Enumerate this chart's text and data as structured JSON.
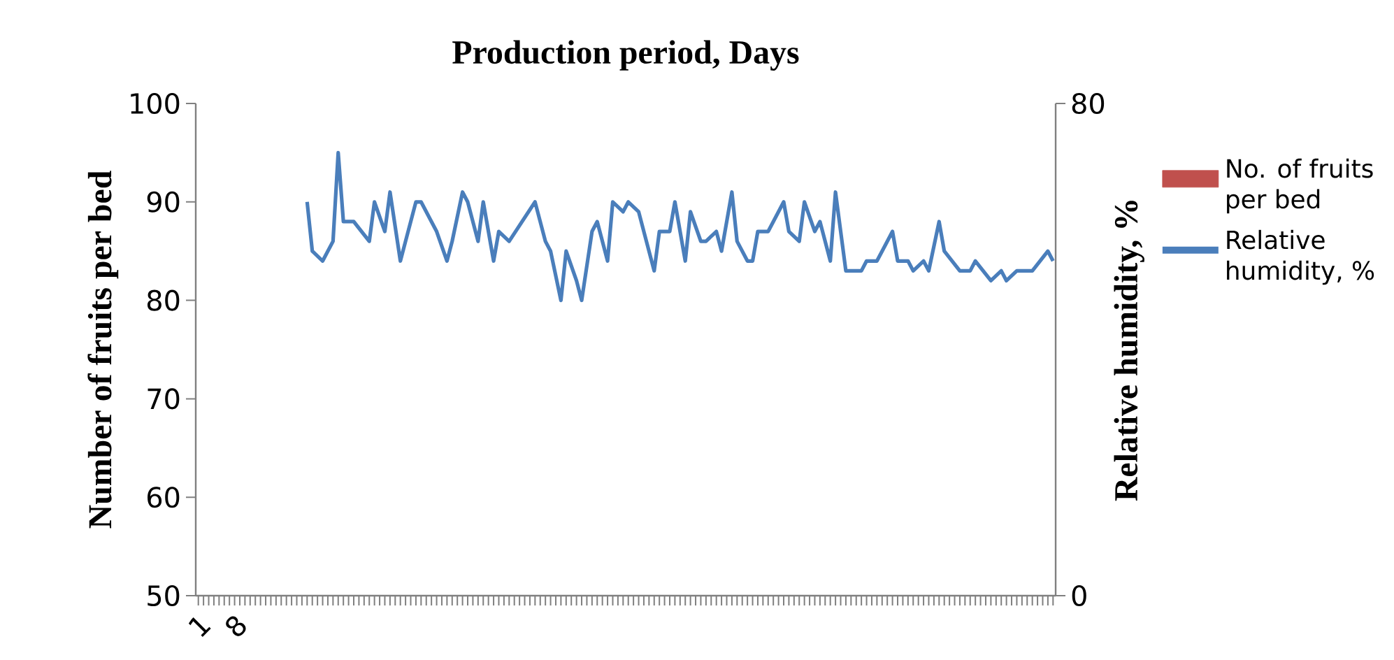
{
  "chart_data": {
    "type": "line",
    "title": "Production period, Days",
    "ylabel": "Number of  fruits per bed",
    "y2label": "Relative humidity, %",
    "ylim": [
      50,
      100
    ],
    "yticks": [
      50,
      60,
      70,
      80,
      90,
      100
    ],
    "y2lim": [
      0,
      80
    ],
    "y2ticks": [
      0,
      80
    ],
    "xlim": [
      0.5,
      166.5
    ],
    "xticks": [
      1,
      {
        "value": 2,
        "label": null
      },
      {
        "value": 3,
        "label": null
      },
      {
        "value": 4,
        "label": null
      },
      {
        "value": 5,
        "label": null
      },
      {
        "value": 6,
        "label": null
      },
      {
        "value": 7,
        "label": null
      },
      8,
      {
        "value": 9,
        "label": null
      },
      {
        "value": 10,
        "label": null
      },
      {
        "value": 11,
        "label": null
      },
      {
        "value": 12,
        "label": null
      },
      {
        "value": 13,
        "label": null
      },
      {
        "value": 14,
        "label": null
      },
      {
        "value": 15,
        "label": null
      },
      {
        "value": 16,
        "label": null
      },
      {
        "value": 17,
        "label": null
      },
      {
        "value": 18,
        "label": null
      },
      {
        "value": 19,
        "label": null
      },
      {
        "value": 20,
        "label": null
      },
      {
        "value": 21,
        "label": null
      },
      {
        "value": 22,
        "label": null
      },
      {
        "value": 23,
        "label": null
      },
      {
        "value": 24,
        "label": null
      },
      {
        "value": 25,
        "label": null
      },
      {
        "value": 26,
        "label": null
      },
      {
        "value": 27,
        "label": null
      },
      {
        "value": 28,
        "label": null
      },
      {
        "value": 29,
        "label": null
      },
      {
        "value": 30,
        "label": null
      },
      {
        "value": 31,
        "label": null
      },
      {
        "value": 32,
        "label": null
      },
      {
        "value": 33,
        "label": null
      },
      {
        "value": 34,
        "label": null
      },
      {
        "value": 35,
        "label": null
      },
      {
        "value": 36,
        "label": null
      },
      {
        "value": 37,
        "label": null
      },
      {
        "value": 38,
        "label": null
      },
      {
        "value": 39,
        "label": null
      },
      {
        "value": 40,
        "label": null
      },
      {
        "value": 41,
        "label": null
      },
      {
        "value": 42,
        "label": null
      },
      {
        "value": 43,
        "label": null
      },
      {
        "value": 44,
        "label": null
      },
      {
        "value": 45,
        "label": null
      },
      {
        "value": 46,
        "label": null
      },
      {
        "value": 47,
        "label": null
      },
      {
        "value": 48,
        "label": null
      },
      {
        "value": 49,
        "label": null
      },
      {
        "value": 50,
        "label": null
      },
      {
        "value": 51,
        "label": null
      },
      {
        "value": 52,
        "label": null
      },
      {
        "value": 53,
        "label": null
      },
      {
        "value": 54,
        "label": null
      },
      {
        "value": 55,
        "label": null
      },
      {
        "value": 56,
        "label": null
      },
      {
        "value": 57,
        "label": null
      },
      {
        "value": 58,
        "label": null
      },
      {
        "value": 59,
        "label": null
      },
      {
        "value": 60,
        "label": null
      },
      {
        "value": 61,
        "label": null
      },
      {
        "value": 62,
        "label": null
      },
      {
        "value": 63,
        "label": null
      },
      {
        "value": 64,
        "label": null
      },
      {
        "value": 65,
        "label": null
      },
      {
        "value": 66,
        "label": null
      },
      {
        "value": 67,
        "label": null
      },
      {
        "value": 68,
        "label": null
      },
      {
        "value": 69,
        "label": null
      },
      {
        "value": 70,
        "label": null
      },
      {
        "value": 71,
        "label": null
      },
      {
        "value": 72,
        "label": null
      },
      {
        "value": 73,
        "label": null
      },
      {
        "value": 74,
        "label": null
      },
      {
        "value": 75,
        "label": null
      },
      {
        "value": 76,
        "label": null
      },
      {
        "value": 77,
        "label": null
      },
      {
        "value": 78,
        "label": null
      },
      {
        "value": 79,
        "label": null
      },
      {
        "value": 80,
        "label": null
      },
      {
        "value": 81,
        "label": null
      },
      {
        "value": 82,
        "label": null
      },
      {
        "value": 83,
        "label": null
      },
      {
        "value": 84,
        "label": null
      },
      {
        "value": 85,
        "label": null
      },
      {
        "value": 86,
        "label": null
      },
      {
        "value": 87,
        "label": null
      },
      {
        "value": 88,
        "label": null
      },
      {
        "value": 89,
        "label": null
      },
      {
        "value": 90,
        "label": null
      },
      {
        "value": 91,
        "label": null
      },
      {
        "value": 92,
        "label": null
      },
      {
        "value": 93,
        "label": null
      },
      {
        "value": 94,
        "label": null
      },
      {
        "value": 95,
        "label": null
      },
      {
        "value": 96,
        "label": null
      },
      {
        "value": 97,
        "label": null
      },
      {
        "value": 98,
        "label": null
      },
      {
        "value": 99,
        "label": null
      },
      {
        "value": 100,
        "label": null
      },
      {
        "value": 101,
        "label": null
      },
      {
        "value": 102,
        "label": null
      },
      {
        "value": 103,
        "label": null
      },
      {
        "value": 104,
        "label": null
      },
      {
        "value": 105,
        "label": null
      },
      {
        "value": 106,
        "label": null
      },
      {
        "value": 107,
        "label": null
      },
      {
        "value": 108,
        "label": null
      },
      {
        "value": 109,
        "label": null
      },
      {
        "value": 110,
        "label": null
      },
      {
        "value": 111,
        "label": null
      },
      {
        "value": 112,
        "label": null
      },
      {
        "value": 113,
        "label": null
      },
      {
        "value": 114,
        "label": null
      },
      {
        "value": 115,
        "label": null
      },
      {
        "value": 116,
        "label": null
      },
      {
        "value": 117,
        "label": null
      },
      {
        "value": 118,
        "label": null
      },
      {
        "value": 119,
        "label": null
      },
      {
        "value": 120,
        "label": null
      },
      {
        "value": 121,
        "label": null
      },
      {
        "value": 122,
        "label": null
      },
      {
        "value": 123,
        "label": null
      },
      {
        "value": 124,
        "label": null
      },
      {
        "value": 125,
        "label": null
      },
      {
        "value": 126,
        "label": null
      },
      {
        "value": 127,
        "label": null
      },
      {
        "value": 128,
        "label": null
      },
      {
        "value": 129,
        "label": null
      },
      {
        "value": 130,
        "label": null
      },
      {
        "value": 131,
        "label": null
      },
      {
        "value": 132,
        "label": null
      },
      {
        "value": 133,
        "label": null
      },
      {
        "value": 134,
        "label": null
      },
      {
        "value": 135,
        "label": null
      },
      {
        "value": 136,
        "label": null
      },
      {
        "value": 137,
        "label": null
      },
      {
        "value": 138,
        "label": null
      },
      {
        "value": 139,
        "label": null
      },
      {
        "value": 140,
        "label": null
      },
      {
        "value": 141,
        "label": null
      },
      {
        "value": 142,
        "label": null
      },
      {
        "value": 143,
        "label": null
      },
      {
        "value": 144,
        "label": null
      },
      {
        "value": 145,
        "label": null
      },
      {
        "value": 146,
        "label": null
      },
      {
        "value": 147,
        "label": null
      },
      {
        "value": 148,
        "label": null
      },
      {
        "value": 149,
        "label": null
      },
      {
        "value": 150,
        "label": null
      },
      {
        "value": 151,
        "label": null
      },
      {
        "value": 152,
        "label": null
      },
      {
        "value": 153,
        "label": null
      },
      {
        "value": 154,
        "label": null
      },
      {
        "value": 155,
        "label": null
      },
      {
        "value": 156,
        "label": null
      },
      {
        "value": 157,
        "label": null
      },
      {
        "value": 158,
        "label": null
      },
      {
        "value": 159,
        "label": null
      },
      {
        "value": 160,
        "label": null
      },
      {
        "value": 161,
        "label": null
      },
      {
        "value": 162,
        "label": null
      },
      {
        "value": 163,
        "label": null
      },
      {
        "value": 164,
        "label": null
      },
      {
        "value": 165,
        "label": null
      },
      {
        "value": 166,
        "label": null
      }
    ],
    "legend": "right",
    "marker": "none",
    "line_style": "solid",
    "series": [
      {
        "name": "No. of fruits per bed",
        "type": "bar",
        "color": "#c0504d"
      },
      {
        "name": "Relative humidity, %",
        "type": "line",
        "color": "#4a7ebb",
        "x": [
          22,
          23,
          25,
          27,
          28,
          29,
          31,
          34,
          35,
          37,
          38,
          40,
          41,
          43,
          44,
          46,
          47,
          49,
          50,
          52,
          53,
          55,
          56,
          58,
          59,
          61,
          66,
          68,
          69,
          71,
          72,
          74,
          75,
          77,
          78,
          80,
          81,
          83,
          84,
          86,
          87,
          89,
          90,
          92,
          93,
          95,
          96,
          98,
          99,
          101,
          102,
          104,
          105,
          107,
          108,
          109,
          111,
          112,
          114,
          115,
          117,
          118,
          120,
          121,
          123,
          124,
          126,
          129,
          130,
          132,
          133,
          135,
          136,
          138,
          139,
          141,
          142,
          144,
          145,
          148,
          150,
          151,
          154,
          156,
          157,
          159,
          162,
          165,
          166
        ],
        "values": [
          90,
          85,
          84,
          86,
          95,
          88,
          88,
          86,
          90,
          87,
          91,
          84,
          86,
          90,
          90,
          88,
          87,
          84,
          86,
          91,
          90,
          86,
          90,
          84,
          87,
          86,
          90,
          86,
          85,
          80,
          85,
          82,
          80,
          87,
          88,
          84,
          90,
          89,
          90,
          89,
          87,
          83,
          87,
          87,
          90,
          84,
          89,
          86,
          86,
          87,
          85,
          91,
          86,
          84,
          84,
          87,
          87,
          88,
          90,
          87,
          86,
          90,
          87,
          88,
          84,
          91,
          83,
          83,
          84,
          84,
          85,
          87,
          84,
          84,
          83,
          84,
          83,
          88,
          85,
          83,
          83,
          84,
          82,
          83,
          82,
          83,
          83,
          85,
          84
        ]
      }
    ]
  }
}
